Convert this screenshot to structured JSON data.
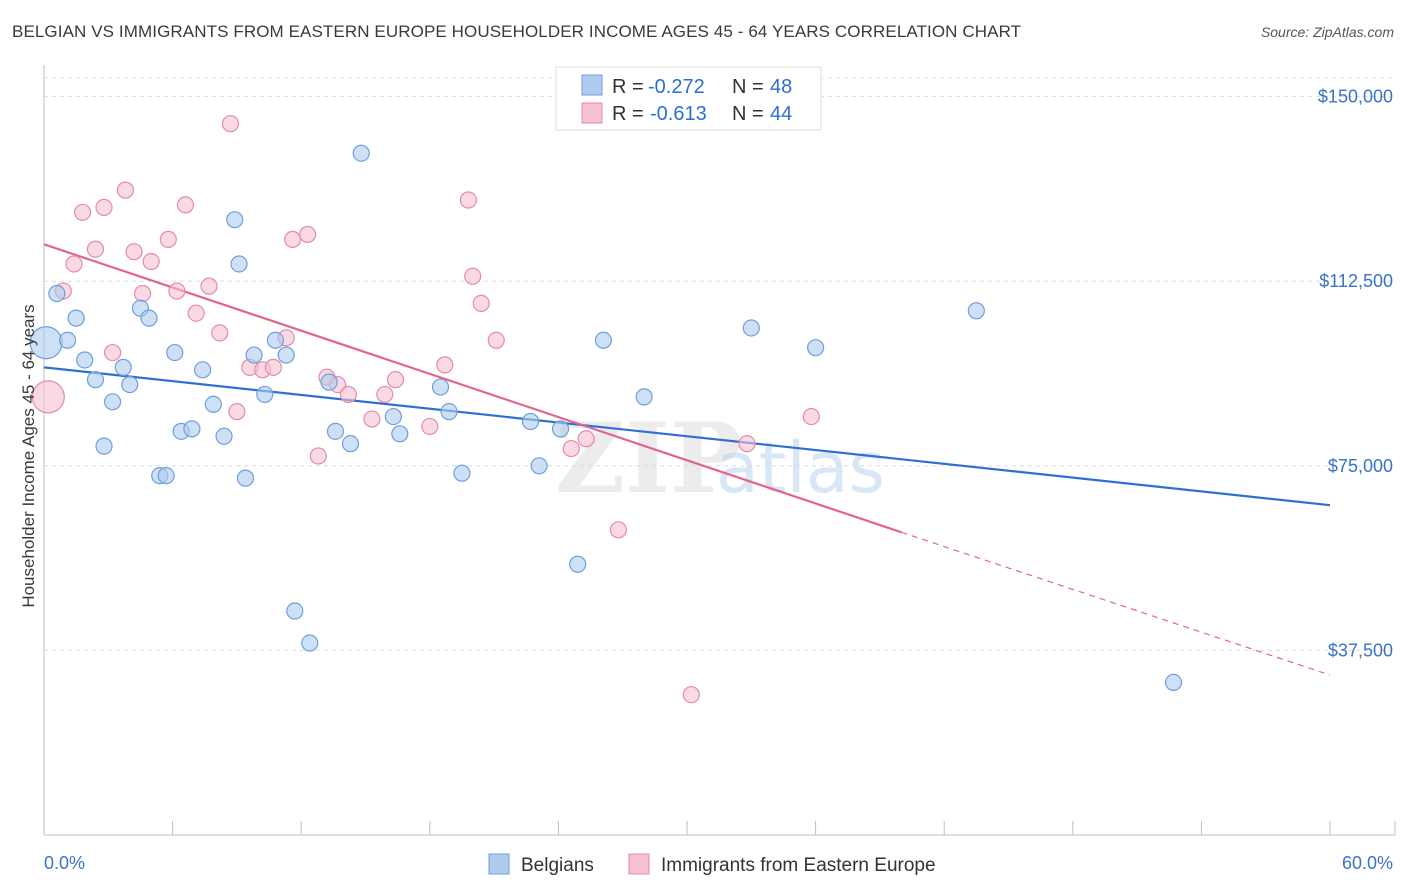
{
  "header": {
    "title": "BELGIAN VS IMMIGRANTS FROM EASTERN EUROPE HOUSEHOLDER INCOME AGES 45 - 64 YEARS CORRELATION CHART",
    "source": "Source: ZipAtlas.com"
  },
  "watermark": {
    "zip": "ZIP",
    "atlas": "atlas"
  },
  "legend_top": {
    "r_label": "R =",
    "n_label": "N =",
    "rows": [
      {
        "r": "-0.272",
        "n": "48"
      },
      {
        "r": "-0.613",
        "n": "44"
      }
    ]
  },
  "legend_bottom": {
    "items": [
      "Belgians",
      "Immigrants from Eastern Europe"
    ]
  },
  "colors": {
    "blue_fill": "#aecbef",
    "blue_stroke": "#6f9fdc",
    "blue_line": "#2f6fcf",
    "pink_fill": "#f5c0d1",
    "pink_stroke": "#e58ba9",
    "pink_line": "#e0668f",
    "axis_text": "#3b73c4"
  },
  "chart_data": {
    "type": "scatter",
    "title": "BELGIAN VS IMMIGRANTS FROM EASTERN EUROPE HOUSEHOLDER INCOME AGES 45 - 64 YEARS CORRELATION CHART",
    "xlabel": "",
    "ylabel": "Householder Income Ages 45 - 64 years",
    "xlim": [
      0,
      60
    ],
    "ylim": [
      0,
      155000
    ],
    "x_tick_labels": [
      "0.0%",
      "60.0%"
    ],
    "y_ticks": [
      37500,
      75000,
      112500,
      150000
    ],
    "y_tick_labels": [
      "$37,500",
      "$75,000",
      "$112,500",
      "$150,000"
    ],
    "grid": true,
    "legend_position": "top-center",
    "series": [
      {
        "name": "Belgians",
        "r": -0.272,
        "n": 48,
        "trend": {
          "x": [
            0,
            60
          ],
          "y": [
            95000,
            67000
          ]
        },
        "points": [
          [
            0.1,
            100000
          ],
          [
            0.6,
            110000
          ],
          [
            1.1,
            100500
          ],
          [
            1.5,
            105000
          ],
          [
            1.9,
            96500
          ],
          [
            2.4,
            92500
          ],
          [
            2.8,
            79000
          ],
          [
            3.2,
            88000
          ],
          [
            3.7,
            95000
          ],
          [
            4.0,
            91500
          ],
          [
            4.5,
            107000
          ],
          [
            4.9,
            105000
          ],
          [
            5.4,
            73000
          ],
          [
            5.7,
            73000
          ],
          [
            6.1,
            98000
          ],
          [
            6.4,
            82000
          ],
          [
            6.9,
            82500
          ],
          [
            7.4,
            94500
          ],
          [
            7.9,
            87500
          ],
          [
            8.4,
            81000
          ],
          [
            8.9,
            125000
          ],
          [
            9.1,
            116000
          ],
          [
            9.4,
            72500
          ],
          [
            9.8,
            97500
          ],
          [
            10.3,
            89500
          ],
          [
            10.8,
            100500
          ],
          [
            11.3,
            97500
          ],
          [
            11.7,
            45500
          ],
          [
            12.4,
            39000
          ],
          [
            13.3,
            92000
          ],
          [
            13.6,
            82000
          ],
          [
            14.3,
            79500
          ],
          [
            14.8,
            138500
          ],
          [
            16.3,
            85000
          ],
          [
            16.6,
            81500
          ],
          [
            18.5,
            91000
          ],
          [
            18.9,
            86000
          ],
          [
            19.5,
            73500
          ],
          [
            22.7,
            84000
          ],
          [
            23.1,
            75000
          ],
          [
            24.1,
            82500
          ],
          [
            24.9,
            55000
          ],
          [
            26.1,
            100500
          ],
          [
            28.0,
            89000
          ],
          [
            33.0,
            103000
          ],
          [
            36.0,
            99000
          ],
          [
            43.5,
            106500
          ],
          [
            52.7,
            31000
          ]
        ]
      },
      {
        "name": "Immigrants from Eastern Europe",
        "r": -0.613,
        "n": 44,
        "trend": {
          "x": [
            0,
            40
          ],
          "y": [
            120000,
            61500
          ]
        },
        "trend_dashed": {
          "x": [
            40,
            60
          ],
          "y": [
            61500,
            32500
          ]
        },
        "points": [
          [
            0.2,
            89000
          ],
          [
            0.9,
            110500
          ],
          [
            1.4,
            116000
          ],
          [
            1.8,
            126500
          ],
          [
            2.4,
            119000
          ],
          [
            2.8,
            127500
          ],
          [
            3.2,
            98000
          ],
          [
            3.8,
            131000
          ],
          [
            4.2,
            118500
          ],
          [
            4.6,
            110000
          ],
          [
            5.0,
            116500
          ],
          [
            5.8,
            121000
          ],
          [
            6.2,
            110500
          ],
          [
            6.6,
            128000
          ],
          [
            7.1,
            106000
          ],
          [
            7.7,
            111500
          ],
          [
            8.2,
            102000
          ],
          [
            8.7,
            144500
          ],
          [
            9.0,
            86000
          ],
          [
            9.6,
            95000
          ],
          [
            10.2,
            94500
          ],
          [
            10.7,
            95000
          ],
          [
            11.3,
            101000
          ],
          [
            11.6,
            121000
          ],
          [
            12.3,
            122000
          ],
          [
            12.8,
            77000
          ],
          [
            13.2,
            93000
          ],
          [
            13.7,
            91500
          ],
          [
            14.2,
            89500
          ],
          [
            15.3,
            84500
          ],
          [
            15.9,
            89500
          ],
          [
            16.4,
            92500
          ],
          [
            18.0,
            83000
          ],
          [
            18.7,
            95500
          ],
          [
            19.8,
            129000
          ],
          [
            20.0,
            113500
          ],
          [
            20.4,
            108000
          ],
          [
            21.1,
            100500
          ],
          [
            24.6,
            78500
          ],
          [
            25.3,
            80500
          ],
          [
            26.8,
            62000
          ],
          [
            30.2,
            28500
          ],
          [
            32.8,
            79500
          ],
          [
            35.8,
            85000
          ]
        ]
      }
    ]
  }
}
